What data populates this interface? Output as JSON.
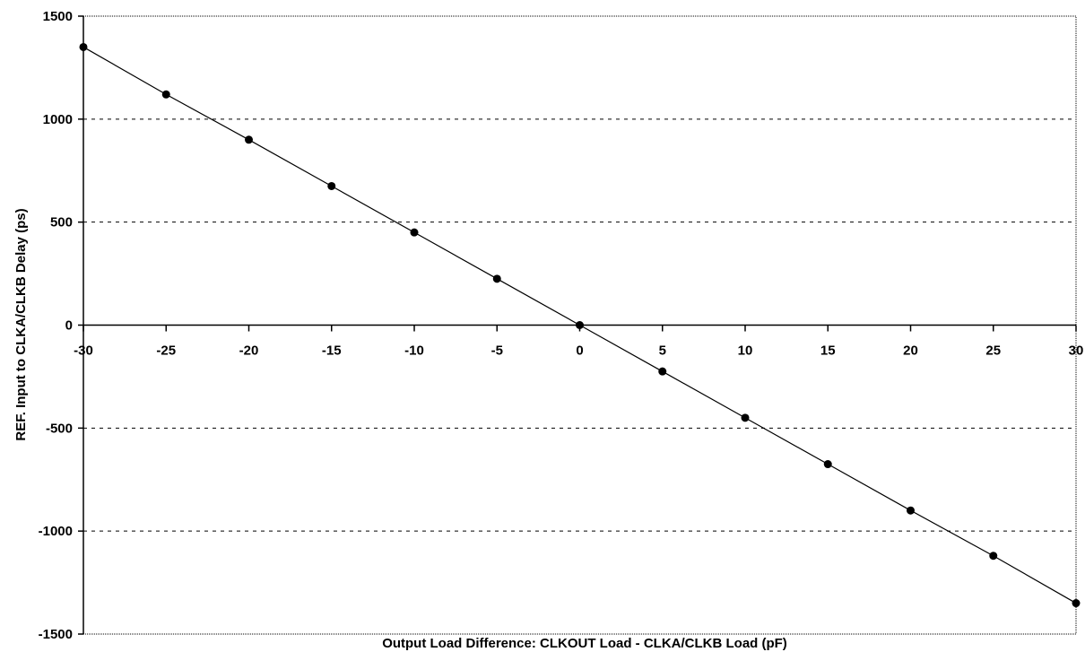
{
  "chart_data": {
    "type": "scatter",
    "title": "",
    "xlabel": "Output Load Difference: CLKOUT Load - CLKA/CLKB Load   (pF)",
    "ylabel": "REF. Input to CLKA/CLKB Delay   (ps)",
    "xlim": [
      -30,
      30
    ],
    "ylim": [
      -1500,
      1500
    ],
    "x_ticks": [
      -30,
      -25,
      -20,
      -15,
      -10,
      -5,
      0,
      5,
      10,
      15,
      20,
      25,
      30
    ],
    "y_ticks": [
      1500,
      1000,
      500,
      0,
      -500,
      -1000,
      -1500
    ],
    "grid": "horizontal dashed",
    "connect_points": true,
    "series": [
      {
        "x": [
          -30,
          -25,
          -20,
          -15,
          -10,
          -5,
          0,
          5,
          10,
          15,
          20,
          25,
          30
        ],
        "y": [
          1350,
          1120,
          900,
          675,
          450,
          225,
          0,
          -225,
          -450,
          -675,
          -900,
          -1120,
          -1350
        ]
      }
    ],
    "colors": {
      "line": "#000000",
      "marker": "#000000",
      "grid": "#000000"
    }
  }
}
